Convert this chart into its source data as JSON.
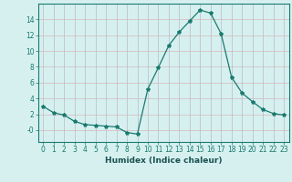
{
  "x": [
    0,
    1,
    2,
    3,
    4,
    5,
    6,
    7,
    8,
    9,
    10,
    11,
    12,
    13,
    14,
    15,
    16,
    17,
    18,
    19,
    20,
    21,
    22,
    23
  ],
  "y": [
    3.0,
    2.2,
    1.9,
    1.1,
    0.7,
    0.6,
    0.5,
    0.4,
    -0.3,
    -0.5,
    5.2,
    7.9,
    10.7,
    12.4,
    13.8,
    15.2,
    14.8,
    12.2,
    6.7,
    4.7,
    3.6,
    2.6,
    2.1,
    1.9
  ],
  "line_color": "#1a7a6e",
  "marker": "*",
  "marker_size": 3,
  "bg_color": "#d6f0f0",
  "vgrid_color": "#b8b8c8",
  "hgrid_color": "#d4b8b8",
  "xlabel": "Humidex (Indice chaleur)",
  "xlim": [
    -0.5,
    23.5
  ],
  "ylim": [
    -1.5,
    16.0
  ],
  "yticks": [
    0,
    2,
    4,
    6,
    8,
    10,
    12,
    14
  ],
  "ytick_labels": [
    "-0",
    "2",
    "4",
    "6",
    "8",
    "10",
    "12",
    "14"
  ],
  "xticks": [
    0,
    1,
    2,
    3,
    4,
    5,
    6,
    7,
    8,
    9,
    10,
    11,
    12,
    13,
    14,
    15,
    16,
    17,
    18,
    19,
    20,
    21,
    22,
    23
  ],
  "font_color": "#1a5050",
  "axis_color": "#1a7a6e",
  "tick_color": "#1a7a6e",
  "label_fontsize": 6.5,
  "tick_fontsize": 5.5
}
